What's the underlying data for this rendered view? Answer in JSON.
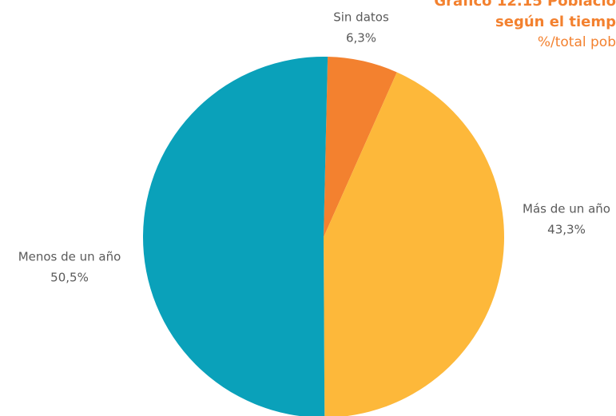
{
  "chart_data": {
    "type": "pie",
    "title": [
      "Gráfico 12.15 Població",
      "según el tiemp"
    ],
    "subtitle": "%/total pob",
    "categories": [
      "Sin datos",
      "Más de un año",
      "Menos de un año"
    ],
    "values": [
      6.3,
      43.3,
      50.5
    ],
    "value_labels": [
      "6,3%",
      "43,3%",
      "50,5%"
    ],
    "colors": [
      "#f3812f",
      "#fdb83a",
      "#0aa1ba"
    ]
  }
}
